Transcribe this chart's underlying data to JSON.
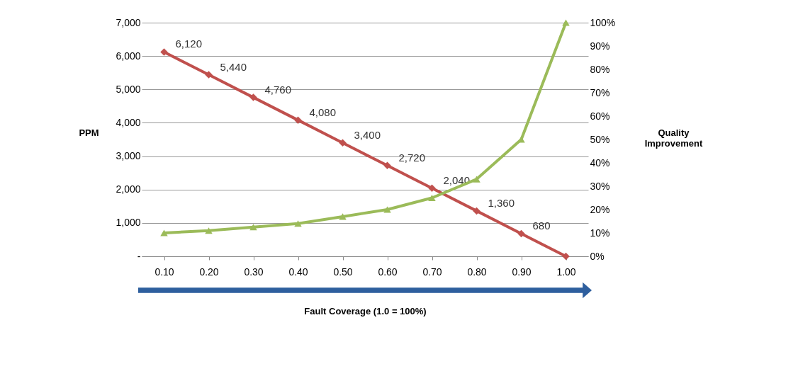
{
  "chart_data": {
    "type": "line",
    "categories": [
      "0.10",
      "0.20",
      "0.30",
      "0.40",
      "0.50",
      "0.60",
      "0.70",
      "0.80",
      "0.90",
      "1.00"
    ],
    "xlabel": "Fault Coverage (1.0 = 100%)",
    "ylabel": "PPM",
    "y2label": "Quality Improvement",
    "series": [
      {
        "color": "#c0504d",
        "marker": "diamond",
        "values": [
          6120,
          5440,
          4760,
          4080,
          3400,
          2720,
          2040,
          1360,
          680,
          0
        ],
        "value_labels": [
          "6,120",
          "5,440",
          "4,760",
          "4,080",
          "3,400",
          "2,720",
          "2,040",
          "1,360",
          "680",
          null
        ]
      },
      {
        "color": "#9bbb59",
        "marker": "triangle",
        "axis": "y2",
        "values": [
          10,
          11,
          12.5,
          14,
          17,
          20,
          25,
          33,
          50,
          100
        ]
      }
    ],
    "ylim": [
      0,
      7000
    ],
    "yticks": [
      {
        "value": 0,
        "label": "-"
      },
      {
        "value": 1000,
        "label": "1,000"
      },
      {
        "value": 2000,
        "label": "2,000"
      },
      {
        "value": 3000,
        "label": "3,000"
      },
      {
        "value": 4000,
        "label": "4,000"
      },
      {
        "value": 5000,
        "label": "5,000"
      },
      {
        "value": 6000,
        "label": "6,000"
      },
      {
        "value": 7000,
        "label": "7,000"
      }
    ],
    "y2lim": [
      0,
      100
    ],
    "y2ticks": [
      {
        "value": 0,
        "label": "0%"
      },
      {
        "value": 10,
        "label": "10%"
      },
      {
        "value": 20,
        "label": "20%"
      },
      {
        "value": 30,
        "label": "30%"
      },
      {
        "value": 40,
        "label": "40%"
      },
      {
        "value": 50,
        "label": "50%"
      },
      {
        "value": 60,
        "label": "60%"
      },
      {
        "value": 70,
        "label": "70%"
      },
      {
        "value": 80,
        "label": "80%"
      },
      {
        "value": 90,
        "label": "90%"
      },
      {
        "value": 100,
        "label": "100%"
      }
    ],
    "grid": "y"
  }
}
